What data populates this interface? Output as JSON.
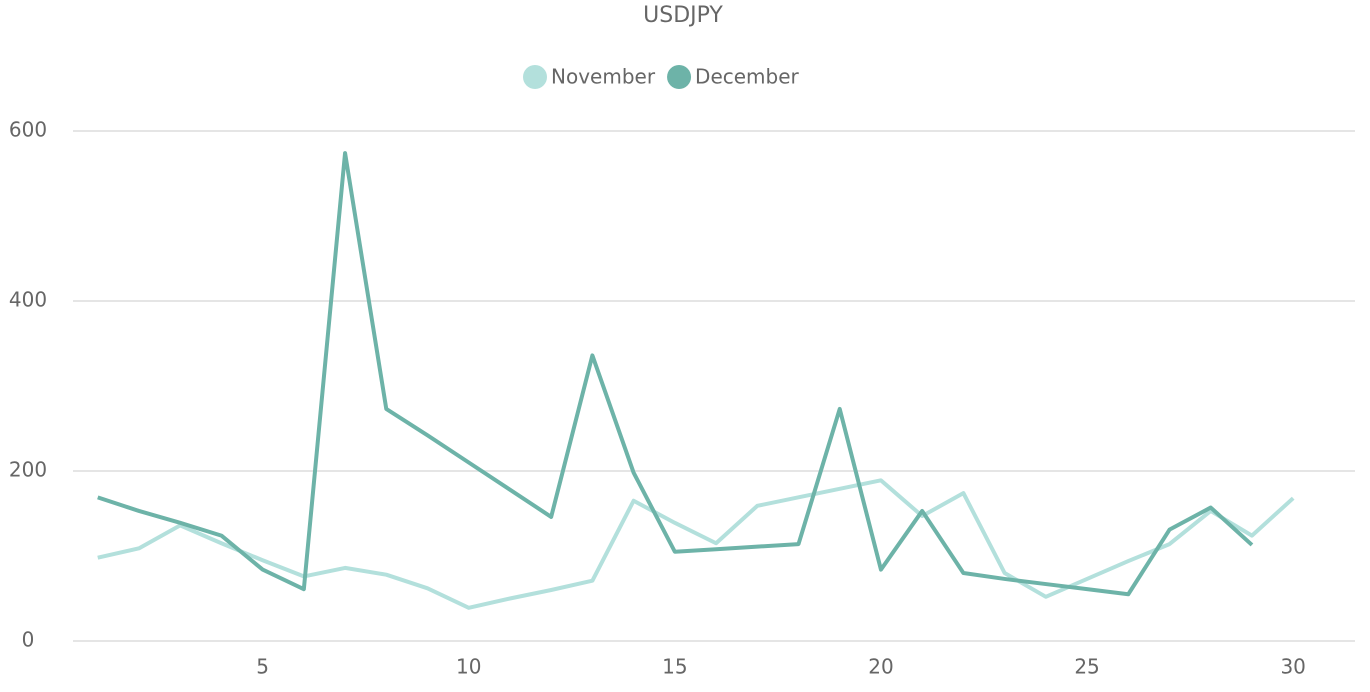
{
  "chart_data": {
    "type": "line",
    "title": "USDJPY",
    "x": [
      1,
      2,
      3,
      4,
      5,
      6,
      7,
      8,
      9,
      10,
      11,
      12,
      13,
      14,
      15,
      16,
      17,
      18,
      19,
      20,
      21,
      22,
      23,
      24,
      25,
      26,
      27,
      28,
      29,
      30
    ],
    "series": [
      {
        "name": "November",
        "color": "#b3e0dc",
        "values": [
          98,
          109,
          136,
          115,
          95,
          76,
          86,
          78,
          62,
          39,
          50,
          60,
          71,
          165,
          139,
          115,
          159,
          169,
          179,
          189,
          147,
          174,
          80,
          52,
          73,
          94,
          114,
          153,
          124,
          168
        ]
      },
      {
        "name": "December",
        "color": "#6db3a8",
        "values": [
          169,
          153,
          139,
          124,
          84,
          61,
          574,
          273,
          242,
          210,
          178,
          146,
          336,
          198,
          105,
          108,
          111,
          114,
          273,
          84,
          153,
          80,
          73,
          67,
          61,
          55,
          131,
          157,
          113,
          null
        ]
      }
    ],
    "xlim": [
      0.4,
      31.5
    ],
    "xticks": [
      5,
      10,
      15,
      20,
      25,
      30
    ],
    "ylim": [
      0,
      600
    ],
    "yticks": [
      0,
      200,
      400,
      600
    ],
    "grid": true,
    "legend": "top"
  }
}
